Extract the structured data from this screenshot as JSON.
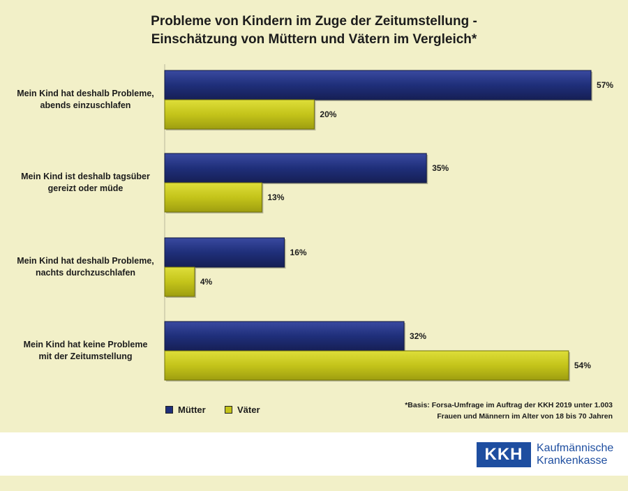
{
  "title_line1": "Probleme von Kindern im Zuge der Zeitumstellung -",
  "title_line2": "Einschätzung von Müttern und Vätern im Vergleich*",
  "legend": {
    "mothers": "Mütter",
    "fathers": "Väter"
  },
  "note": {
    "line1": "*Basis: Forsa-Umfrage im Auftrag der KKH 2019 unter 1.003",
    "line2": "Frauen und Männern im Alter von 18 bis 70 Jahren"
  },
  "logo": {
    "abbr": "KKH",
    "line1": "Kaufmännische",
    "line2": "Krankenkasse"
  },
  "colors": {
    "mothers": "#1f2f7a",
    "fathers": "#c4c41a",
    "background": "#f2f0c8"
  },
  "chart_data": {
    "type": "bar",
    "orientation": "horizontal",
    "categories": [
      [
        "Mein Kind hat deshalb Probleme,",
        "abends einzuschlafen"
      ],
      [
        "Mein Kind ist deshalb tagsüber",
        "gereizt oder müde"
      ],
      [
        "Mein Kind hat deshalb Probleme,",
        "nachts durchzuschlafen"
      ],
      [
        "Mein Kind hat keine Probleme",
        "mit der Zeitumstellung"
      ]
    ],
    "series": [
      {
        "name": "Mütter",
        "values": [
          57,
          35,
          16,
          32
        ],
        "labels": [
          "57%",
          "35%",
          "16%",
          "32%"
        ],
        "color": "#1f2f7a"
      },
      {
        "name": "Väter",
        "values": [
          20,
          13,
          4,
          54
        ],
        "labels": [
          "20%",
          "13%",
          "4%",
          "54%"
        ],
        "color": "#c4c41a"
      }
    ],
    "xlim": [
      0,
      60
    ],
    "grid": false,
    "legend_position": "bottom-left"
  }
}
